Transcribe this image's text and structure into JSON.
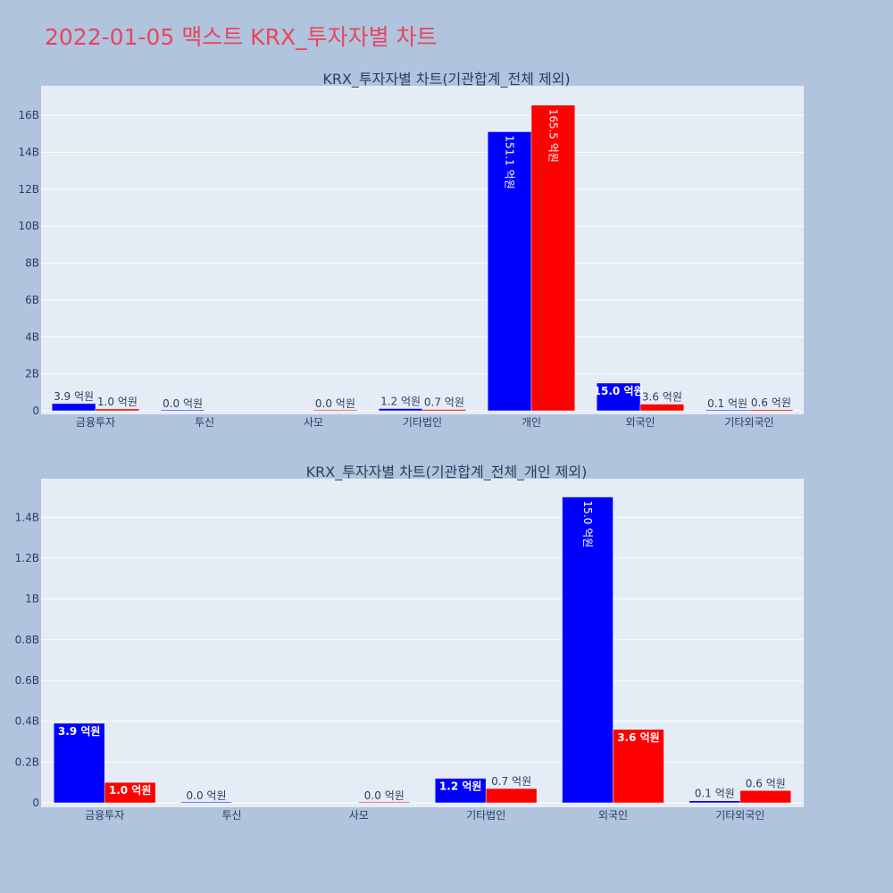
{
  "page_title": "2022-01-05 맥스트 KRX_투자자별 차트",
  "chart_data": [
    {
      "type": "bar",
      "title": "KRX_투자자별 차트(기관합계_전체 제외)",
      "categories": [
        "금융투자",
        "투신",
        "사모",
        "기타법인",
        "개인",
        "외국인",
        "기타외국인"
      ],
      "series": [
        {
          "color": "#0000ff",
          "values": [
            390000000,
            0,
            null,
            120000000,
            15110000000,
            1500000000,
            10000000
          ],
          "labels": [
            "3.9 억원",
            "0.0 억원",
            "",
            "1.2 억원",
            "151.1 억원",
            "15.0 억원",
            "0.1 억원"
          ]
        },
        {
          "color": "#ff0000",
          "values": [
            100000000,
            null,
            0,
            70000000,
            16550000000,
            360000000,
            60000000
          ],
          "labels": [
            "1.0 억원",
            "",
            "0.0 억원",
            "0.7 억원",
            "165.5 억원",
            "3.6 억원",
            "0.6 억원"
          ]
        }
      ],
      "ylim": [
        0,
        17600000000
      ],
      "yticks": [
        0,
        2000000000,
        4000000000,
        6000000000,
        8000000000,
        10000000000,
        12000000000,
        14000000000,
        16000000000
      ],
      "ytick_labels": [
        "0",
        "2B",
        "4B",
        "6B",
        "8B",
        "10B",
        "12B",
        "14B",
        "16B"
      ],
      "grid": true
    },
    {
      "type": "bar",
      "title": "KRX_투자자별 차트(기관합계_전체_개인 제외)",
      "categories": [
        "금융투자",
        "투신",
        "사모",
        "기타법인",
        "외국인",
        "기타외국인"
      ],
      "series": [
        {
          "color": "#0000ff",
          "values": [
            390000000,
            0,
            null,
            120000000,
            1500000000,
            10000000
          ],
          "labels": [
            "3.9 억원",
            "0.0 억원",
            "",
            "1.2 억원",
            "15.0 억원",
            "0.1 억원"
          ]
        },
        {
          "color": "#ff0000",
          "values": [
            100000000,
            null,
            0,
            70000000,
            360000000,
            60000000
          ],
          "labels": [
            "1.0 억원",
            "",
            "0.0 억원",
            "0.7 억원",
            "3.6 억원",
            "0.6 억원"
          ]
        }
      ],
      "ylim": [
        0,
        1590000000
      ],
      "yticks": [
        0,
        200000000,
        400000000,
        600000000,
        800000000,
        1000000000,
        1200000000,
        1400000000
      ],
      "ytick_labels": [
        "0",
        "0.2B",
        "0.4B",
        "0.6B",
        "0.8B",
        "1B",
        "1.2B",
        "1.4B"
      ],
      "grid": true
    }
  ]
}
